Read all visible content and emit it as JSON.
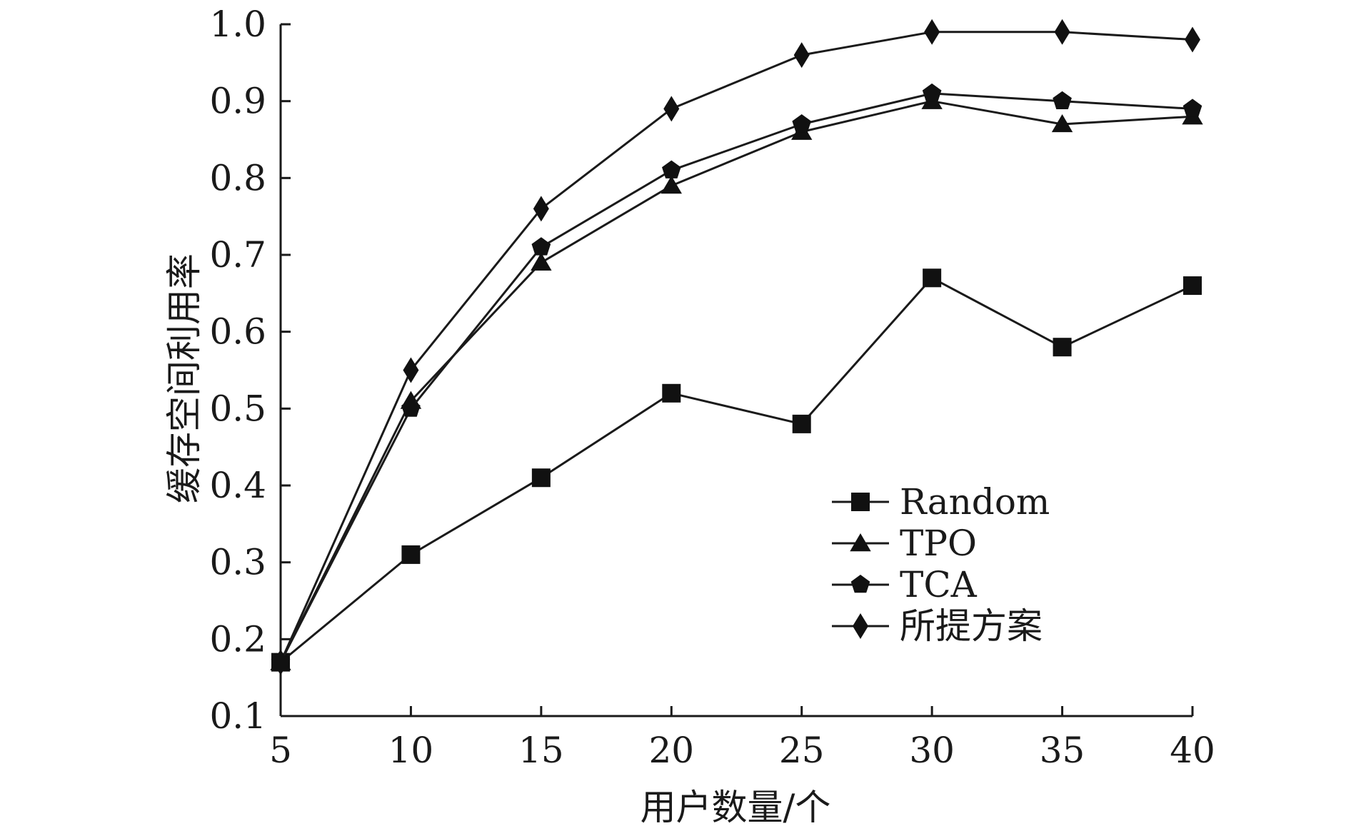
{
  "chart_data": {
    "type": "line",
    "x": [
      5,
      10,
      15,
      20,
      25,
      30,
      35,
      40
    ],
    "xlabel": "用户数量/个",
    "ylabel": "缓存空间利用率",
    "xlim": [
      5,
      40
    ],
    "ylim": [
      0.1,
      1.0
    ],
    "xticks": [
      "5",
      "10",
      "15",
      "20",
      "25",
      "30",
      "35",
      "40"
    ],
    "yticks": [
      "0.1",
      "0.2",
      "0.3",
      "0.4",
      "0.5",
      "0.6",
      "0.7",
      "0.8",
      "0.9",
      "1.0"
    ],
    "grid": false,
    "legend_position": "lower-right",
    "series": [
      {
        "name": "Random",
        "marker": "square",
        "values": [
          0.17,
          0.31,
          0.41,
          0.52,
          0.48,
          0.67,
          0.58,
          0.66
        ]
      },
      {
        "name": "TPO",
        "marker": "triangle",
        "values": [
          0.17,
          0.51,
          0.69,
          0.79,
          0.86,
          0.9,
          0.87,
          0.88
        ]
      },
      {
        "name": "TCA",
        "marker": "pentagon",
        "values": [
          0.17,
          0.5,
          0.71,
          0.81,
          0.87,
          0.91,
          0.9,
          0.89
        ]
      },
      {
        "name": "所提方案",
        "marker": "diamond",
        "values": [
          0.17,
          0.55,
          0.76,
          0.89,
          0.96,
          0.99,
          0.99,
          0.98
        ]
      }
    ],
    "colors": {
      "line": "#1a1a1a",
      "marker": "#111111"
    }
  }
}
